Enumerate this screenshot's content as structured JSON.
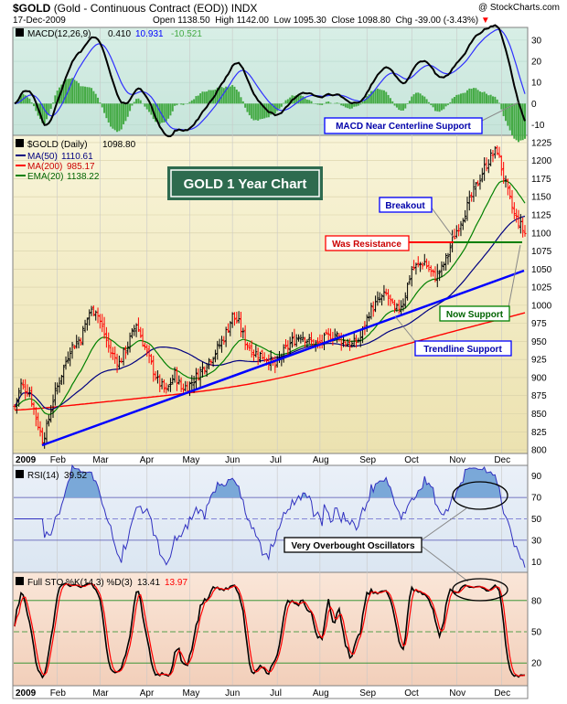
{
  "header": {
    "symbol": "$GOLD",
    "description": "(Gold - Continuous Contract (EOD))",
    "exchange": "INDX",
    "copyright": "@ StockCharts.com",
    "date": "17-Dec-2009",
    "open_label": "Open",
    "open": "1138.50",
    "high_label": "High",
    "high": "1142.00",
    "low_label": "Low",
    "low": "1095.30",
    "close_label": "Close",
    "close": "1098.80",
    "chg_label": "Chg",
    "chg": "-39.00 (-3.43%)",
    "chg_arrow": "▼"
  },
  "colors": {
    "macd_bg": "#d2ebe3",
    "price_bg_top": "#f8f4d8",
    "price_bg_bottom": "#ece2b0",
    "rsi_bg": "#e3ecf6",
    "sto_bg": "#f7dccb",
    "up_bar": "#000000",
    "down_bar": "#ff0000",
    "ma50": "#000080",
    "ma200": "#ff0000",
    "ema20": "#008000",
    "trendline": "#0000ff",
    "resistance": "#ff0000",
    "support": "#008000",
    "title_box_bg": "#2e6b4f"
  },
  "macd": {
    "label": "MACD(12,26,9)",
    "macd_value": "0.410",
    "signal_value": "10.931",
    "hist_value": "-10.521",
    "ticks": [
      "30",
      "20",
      "10",
      "0",
      "-10"
    ],
    "annotation": "MACD Near Centerline Support"
  },
  "price": {
    "legend_symbol": "$GOLD (Daily)",
    "legend_value": "1098.80",
    "ma50_label": "MA(50)",
    "ma50_value": "1110.61",
    "ma200_label": "MA(200)",
    "ma200_value": "985.17",
    "ema20_label": "EMA(20)",
    "ema20_value": "1138.22",
    "ticks": [
      "1225",
      "1200",
      "1175",
      "1150",
      "1125",
      "1100",
      "1075",
      "1050",
      "1025",
      "1000",
      "975",
      "950",
      "925",
      "900",
      "875",
      "850",
      "825",
      "800"
    ],
    "title_box": "GOLD 1 Year Chart",
    "annotations": {
      "breakout": "Breakout",
      "was_resistance": "Was Resistance",
      "now_support": "Now Support",
      "trendline_support": "Trendline Support"
    }
  },
  "rsi": {
    "label": "RSI(14)",
    "value": "39.52",
    "ticks": [
      "90",
      "70",
      "50",
      "30",
      "10"
    ],
    "annotation": "Very Overbought Oscillators"
  },
  "sto": {
    "label": "Full STO %K(14,3) %D(3)",
    "k_value": "13.41",
    "d_value": "13.97",
    "ticks": [
      "80",
      "50",
      "20"
    ]
  },
  "months": [
    "2009",
    "Feb",
    "Mar",
    "Apr",
    "May",
    "Jun",
    "Jul",
    "Aug",
    "Sep",
    "Oct",
    "Nov",
    "Dec"
  ],
  "chart_data": {
    "type": "line",
    "title": "GOLD 1 Year Chart",
    "price_range": [
      795,
      1235
    ],
    "price_close_by_month": {
      "x": [
        "Jan",
        "Feb",
        "Mar",
        "Apr",
        "May",
        "Jun",
        "Jul",
        "Aug",
        "Sep",
        "Oct",
        "Nov",
        "Dec"
      ],
      "close": [
        880,
        950,
        920,
        890,
        940,
        975,
        930,
        950,
        1000,
        1045,
        1180,
        1099
      ]
    },
    "series": [
      {
        "name": "MA(50)",
        "last": 1110.61
      },
      {
        "name": "MA(200)",
        "last": 985.17
      },
      {
        "name": "EMA(20)",
        "last": 1138.22
      }
    ],
    "macd": {
      "range": [
        -15,
        36
      ],
      "last_macd": 0.41,
      "last_signal": 10.931,
      "last_hist": -10.521
    },
    "rsi": {
      "range": [
        0,
        100
      ],
      "last": 39.52,
      "levels": [
        30,
        70
      ]
    },
    "stochastic": {
      "range": [
        0,
        100
      ],
      "k_last": 13.41,
      "d_last": 13.97,
      "levels": [
        20,
        50,
        80
      ]
    }
  }
}
